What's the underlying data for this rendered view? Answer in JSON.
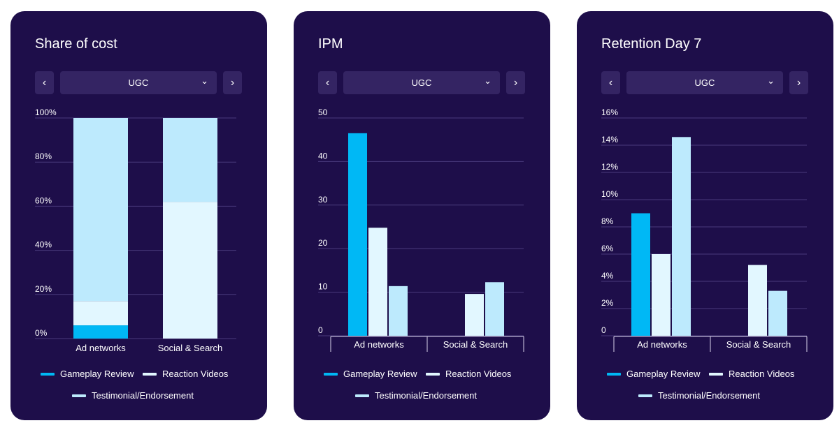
{
  "series_names": [
    "Gameplay Review",
    "Reaction Videos",
    "Testimonial/Endorsement"
  ],
  "colors": {
    "card_bg": "#1e0e4a",
    "control_bg": "#342463",
    "grid": "#4a3b7c",
    "series": [
      "#00b8f5",
      "#e2f7ff",
      "#bdeafd"
    ]
  },
  "icons": {
    "prev": "chevron-left-icon",
    "next": "chevron-right-icon",
    "dropdown": "chevron-down-icon"
  },
  "cards": [
    {
      "title": "Share of cost",
      "selector": {
        "value": "UGC",
        "prev_glyph": "‹",
        "next_glyph": "›",
        "chevron_glyph": "⌄"
      },
      "chart_data": {
        "type": "bar",
        "stacked": true,
        "title": "Share of cost",
        "categories": [
          "Ad networks",
          "Social & Search"
        ],
        "series": [
          {
            "name": "Gameplay Review",
            "values": [
              6,
              0
            ]
          },
          {
            "name": "Reaction Videos",
            "values": [
              11,
              62
            ]
          },
          {
            "name": "Testimonial/Endorsement",
            "values": [
              83,
              38
            ]
          }
        ],
        "ylim": [
          0,
          100
        ],
        "yticks": [
          "0%",
          "20%",
          "40%",
          "60%",
          "80%",
          "100%"
        ],
        "grid": true,
        "legend": "bottom"
      }
    },
    {
      "title": "IPM",
      "selector": {
        "value": "UGC",
        "prev_glyph": "‹",
        "next_glyph": "›",
        "chevron_glyph": "⌄"
      },
      "chart_data": {
        "type": "bar",
        "stacked": false,
        "title": "IPM",
        "categories": [
          "Ad networks",
          "Social & Search"
        ],
        "series": [
          {
            "name": "Gameplay Review",
            "values": [
              46.5,
              0
            ]
          },
          {
            "name": "Reaction Videos",
            "values": [
              24.8,
              9.6
            ]
          },
          {
            "name": "Testimonial/Endorsement",
            "values": [
              11.4,
              12.3
            ]
          }
        ],
        "ylim": [
          0,
          50
        ],
        "yticks": [
          "0",
          "10",
          "20",
          "30",
          "40",
          "50"
        ],
        "grid": true,
        "legend": "bottom"
      }
    },
    {
      "title": "Retention Day 7",
      "selector": {
        "value": "UGC",
        "prev_glyph": "‹",
        "next_glyph": "›",
        "chevron_glyph": "⌄"
      },
      "chart_data": {
        "type": "bar",
        "stacked": false,
        "title": "Retention Day 7",
        "categories": [
          "Ad networks",
          "Social & Search"
        ],
        "series": [
          {
            "name": "Gameplay Review",
            "values": [
              9,
              0
            ]
          },
          {
            "name": "Reaction Videos",
            "values": [
              6,
              5.2
            ]
          },
          {
            "name": "Testimonial/Endorsement",
            "values": [
              14.6,
              3.3
            ]
          }
        ],
        "ylim": [
          0,
          16
        ],
        "yticks": [
          "0",
          "2%",
          "4%",
          "6%",
          "8%",
          "10%",
          "12%",
          "14%",
          "16%"
        ],
        "grid": true,
        "legend": "bottom"
      }
    }
  ]
}
